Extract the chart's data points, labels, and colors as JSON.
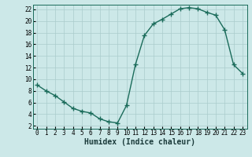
{
  "x_values": [
    0,
    1,
    2,
    3,
    4,
    5,
    6,
    7,
    8,
    9,
    10,
    11,
    12,
    13,
    14,
    15,
    16,
    17,
    18,
    19,
    20,
    21,
    22,
    23
  ],
  "y_values": [
    9,
    8,
    7.2,
    6.1,
    5.0,
    4.5,
    4.2,
    3.2,
    2.7,
    2.5,
    5.5,
    12.5,
    17.5,
    19.5,
    20.3,
    21.2,
    22.1,
    22.3,
    22.1,
    21.5,
    21.0,
    18.5,
    12.5,
    11.0
  ],
  "line_color": "#1a6b5a",
  "marker": "+",
  "marker_size": 4,
  "marker_lw": 1.0,
  "bg_color": "#cce8e8",
  "grid_color": "#aacccc",
  "xlabel": "Humidex (Indice chaleur)",
  "xlabel_fontsize": 7,
  "ylim_min": 1.5,
  "ylim_max": 22.8,
  "xlim_min": -0.5,
  "xlim_max": 23.5,
  "yticks": [
    2,
    4,
    6,
    8,
    10,
    12,
    14,
    16,
    18,
    20,
    22
  ],
  "xticks": [
    0,
    1,
    2,
    3,
    4,
    5,
    6,
    7,
    8,
    9,
    10,
    11,
    12,
    13,
    14,
    15,
    16,
    17,
    18,
    19,
    20,
    21,
    22,
    23
  ],
  "tick_fontsize": 5.5,
  "line_width": 1.0
}
